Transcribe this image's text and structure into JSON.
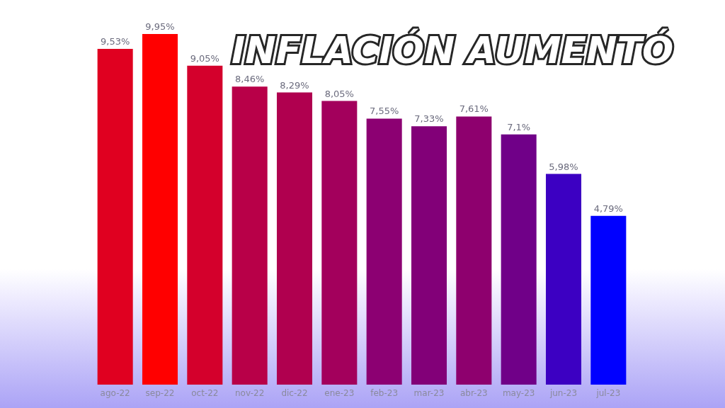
{
  "chart_data": {
    "type": "bar",
    "title": "INFLACIÓN AUMENTÓ",
    "categories": [
      "ago-22",
      "sep-22",
      "oct-22",
      "nov-22",
      "dic-22",
      "ene-23",
      "feb-23",
      "mar-23",
      "abr-23",
      "may-23",
      "jun-23",
      "jul-23"
    ],
    "values": [
      9.53,
      9.95,
      9.05,
      8.46,
      8.29,
      8.05,
      7.55,
      7.33,
      7.61,
      7.1,
      5.98,
      4.79
    ],
    "value_labels": [
      "9,53%",
      "9,95%",
      "9,05%",
      "8,46%",
      "8,29%",
      "8,05%",
      "7,55%",
      "7,33%",
      "7,61%",
      "7,1%",
      "5,98%",
      "4,79%"
    ],
    "colors": [
      "#e00020",
      "#ff0000",
      "#d4002c",
      "#b80048",
      "#b0004f",
      "#a3005c",
      "#8c0072",
      "#820078",
      "#8e006e",
      "#700088",
      "#3c00c2",
      "#0000ff"
    ],
    "tick_labels": "x",
    "grid": false
  }
}
